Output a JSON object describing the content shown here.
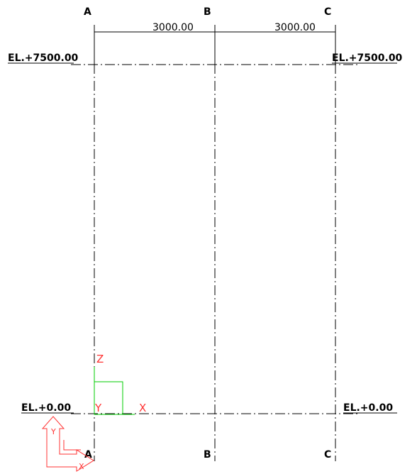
{
  "grid": {
    "columns": [
      "A",
      "B",
      "C"
    ],
    "dimensions": [
      "3000.00",
      "3000.00"
    ],
    "elevations": [
      "EL.+7500.00",
      "EL.+0.00"
    ]
  },
  "ucs_icon": {
    "axes": [
      "Z",
      "Y",
      "X"
    ],
    "color": "#00cc00",
    "label_color": "#ff3333"
  },
  "world_icon": {
    "axes": [
      "Y",
      "X"
    ],
    "color": "#ff3333"
  },
  "colors": {
    "background": "#ffffff",
    "lines": "#000000"
  }
}
